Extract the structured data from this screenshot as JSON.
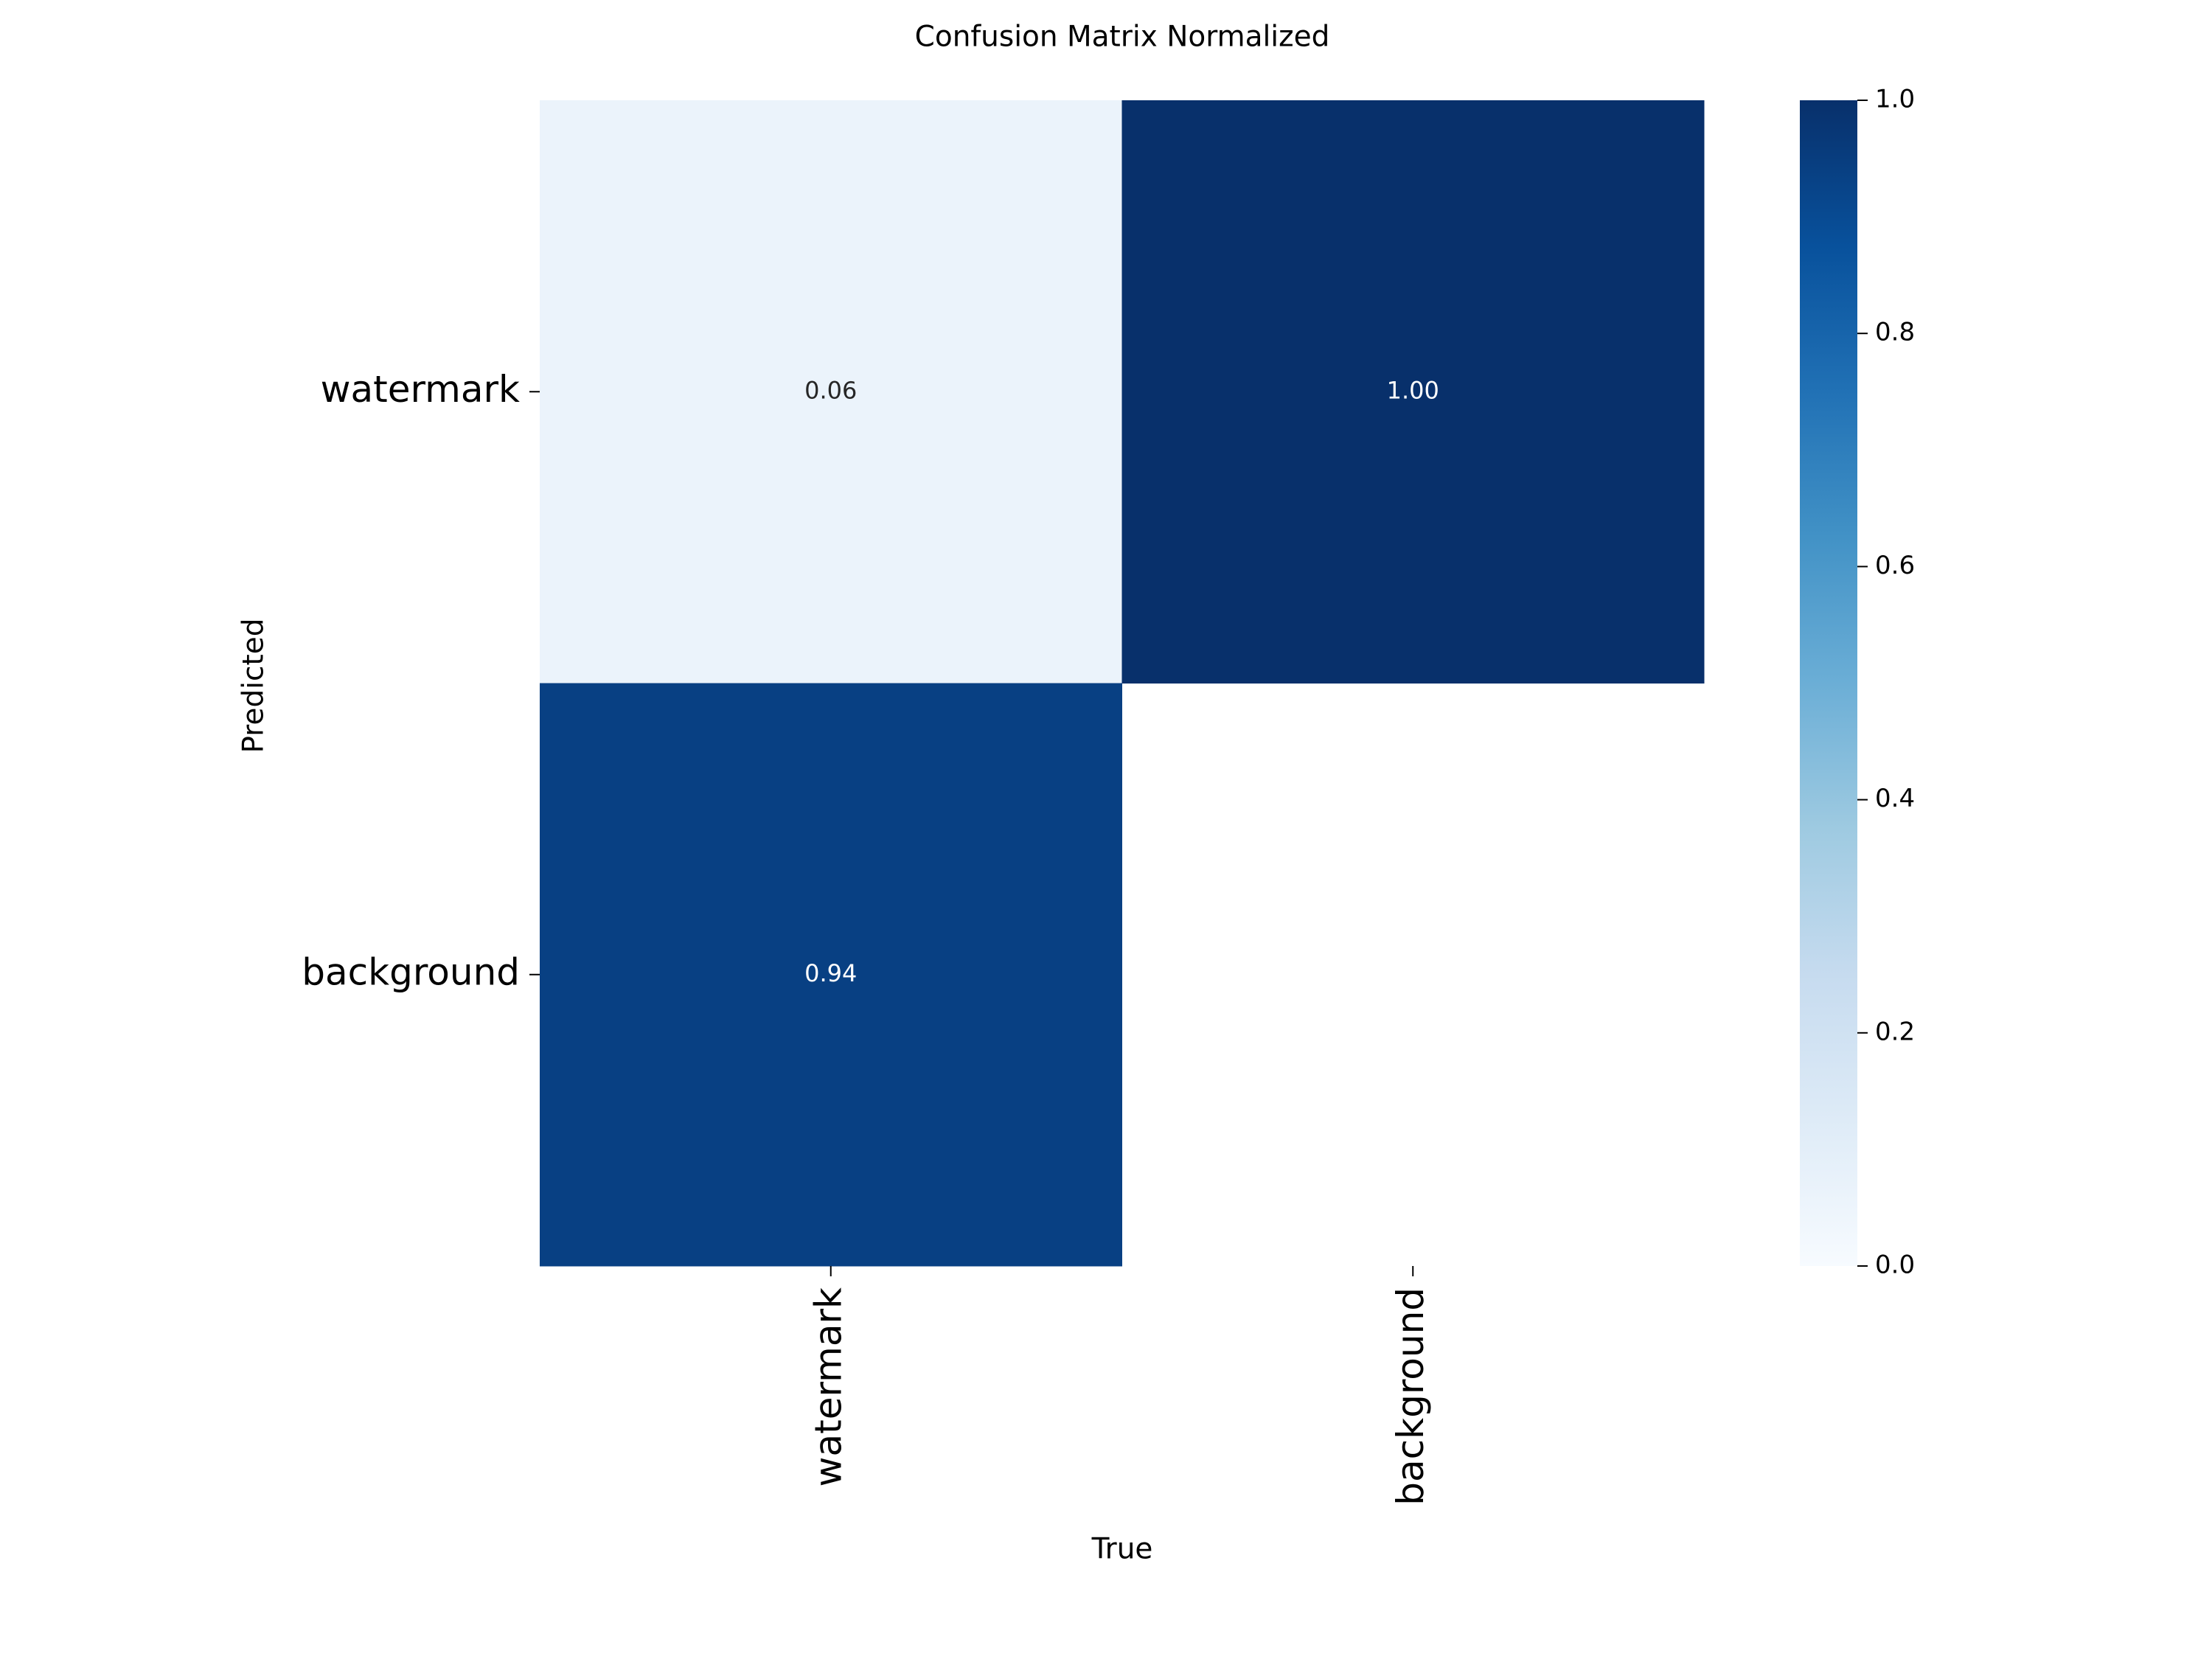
{
  "chart_data": {
    "type": "heatmap",
    "title": "Confusion Matrix Normalized",
    "x_label": "True",
    "y_label": "Predicted",
    "x_categories": [
      "watermark",
      "background"
    ],
    "y_categories": [
      "watermark",
      "background"
    ],
    "values": [
      [
        0.06,
        1.0
      ],
      [
        0.94,
        null
      ]
    ],
    "value_labels": [
      [
        "0.06",
        "1.00"
      ],
      [
        "0.94",
        null
      ]
    ],
    "colormap": "Blues",
    "clim": [
      0,
      1
    ],
    "cticks": [
      {
        "value": 0,
        "label": "0.0"
      },
      0.2,
      0.4,
      0.6,
      0.8,
      {
        "value": 1,
        "label": "1.0"
      }
    ]
  }
}
